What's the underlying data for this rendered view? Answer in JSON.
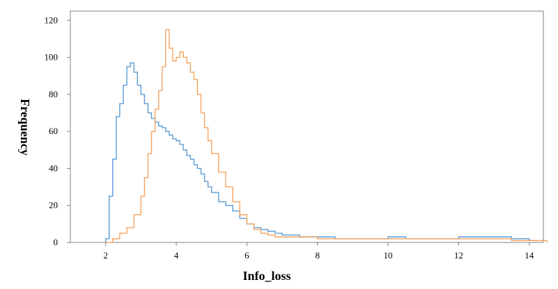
{
  "chart_data": {
    "type": "histogram",
    "title": "",
    "xlabel": "Info_loss",
    "ylabel": "Frequency",
    "xlim": [
      1.0,
      14.4
    ],
    "ylim": [
      0,
      125
    ],
    "x_ticks": [
      "2",
      "4",
      "6",
      "8",
      "10",
      "12",
      "14"
    ],
    "y_ticks": [
      "0",
      "20",
      "40",
      "60",
      "80",
      "100",
      "120"
    ],
    "x_tick_values": [
      2,
      4,
      6,
      8,
      10,
      12,
      14
    ],
    "y_tick_values": [
      0,
      20,
      40,
      60,
      80,
      100,
      120
    ],
    "grid": false,
    "legend": "none",
    "series": [
      {
        "color": "#5b9bd5",
        "x": [
          2.0,
          2.1,
          2.2,
          2.3,
          2.4,
          2.5,
          2.6,
          2.7,
          2.8,
          2.9,
          3.0,
          3.1,
          3.2,
          3.3,
          3.4,
          3.5,
          3.6,
          3.7,
          3.8,
          3.9,
          4.0,
          4.1,
          4.2,
          4.3,
          4.4,
          4.5,
          4.6,
          4.7,
          4.8,
          4.9,
          5.0,
          5.2,
          5.4,
          5.6,
          5.8,
          6.0,
          6.2,
          6.4,
          6.6,
          6.8,
          7.0,
          7.5,
          8.0,
          8.5,
          9.0,
          9.5,
          10.0,
          10.5,
          11.0,
          11.5,
          12.0,
          12.5,
          13.0,
          13.5,
          14.0
        ],
        "y": [
          2,
          25,
          45,
          68,
          75,
          85,
          95,
          97,
          92,
          85,
          80,
          75,
          70,
          67,
          65,
          63,
          62,
          60,
          58,
          56,
          55,
          53,
          50,
          47,
          45,
          42,
          40,
          37,
          33,
          30,
          27,
          22,
          20,
          17,
          13,
          10,
          8,
          7,
          6,
          5,
          4,
          3,
          3,
          2,
          2,
          2,
          3,
          2,
          2,
          2,
          3,
          3,
          3,
          2,
          1
        ]
      },
      {
        "color": "#f4a460",
        "x": [
          2.0,
          2.2,
          2.4,
          2.6,
          2.8,
          3.0,
          3.1,
          3.2,
          3.3,
          3.4,
          3.5,
          3.6,
          3.7,
          3.8,
          3.9,
          4.0,
          4.1,
          4.2,
          4.3,
          4.4,
          4.5,
          4.6,
          4.7,
          4.8,
          4.9,
          5.0,
          5.2,
          5.4,
          5.6,
          5.8,
          6.0,
          6.2,
          6.4,
          6.6,
          6.8,
          7.0,
          7.5,
          8.0,
          8.5,
          9.0,
          9.5,
          10.0,
          10.5,
          11.0,
          11.5,
          12.0,
          12.5,
          13.0,
          13.5,
          14.0
        ],
        "y": [
          0,
          2,
          5,
          8,
          15,
          25,
          35,
          48,
          60,
          72,
          82,
          95,
          115,
          105,
          98,
          100,
          103,
          100,
          97,
          92,
          88,
          80,
          70,
          62,
          55,
          48,
          38,
          30,
          22,
          15,
          10,
          7,
          5,
          4,
          3,
          3,
          3,
          2,
          2,
          2,
          2,
          2,
          2,
          2,
          2,
          2,
          2,
          2,
          1,
          1
        ]
      }
    ]
  }
}
